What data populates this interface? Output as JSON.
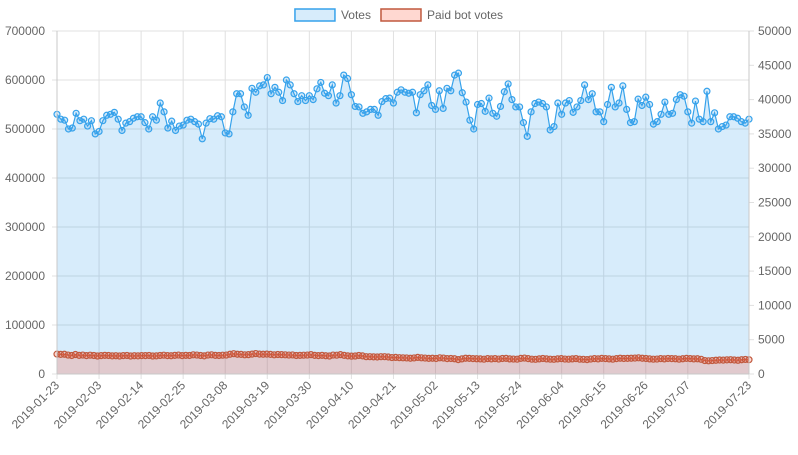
{
  "chart_data": {
    "type": "area",
    "dual_axis": true,
    "legend_position": "top",
    "grid": true,
    "legend": [
      {
        "name": "Votes",
        "color": "#36a2eb",
        "fill": "rgba(54,162,235,0.2)"
      },
      {
        "name": "Paid bot votes",
        "color": "#c0593e",
        "fill": "rgba(255,99,71,0.25)"
      }
    ],
    "x_start": "2019-01-23",
    "x_end": "2019-07-23",
    "x_ticks": [
      "2019-01-23",
      "2019-02-03",
      "2019-02-14",
      "2019-02-25",
      "2019-03-08",
      "2019-03-19",
      "2019-03-30",
      "2019-04-10",
      "2019-04-21",
      "2019-05-02",
      "2019-05-13",
      "2019-05-24",
      "2019-06-04",
      "2019-06-15",
      "2019-06-26",
      "2019-07-07",
      "2019-07-23"
    ],
    "y_left": {
      "min": 0,
      "max": 700000,
      "ticks": [
        "0",
        "100000",
        "200000",
        "300000",
        "400000",
        "500000",
        "600000",
        "700000"
      ]
    },
    "y_right": {
      "min": 0,
      "max": 50000,
      "ticks": [
        "0",
        "5000",
        "10000",
        "15000",
        "20000",
        "25000",
        "30000",
        "35000",
        "40000",
        "45000",
        "50000"
      ]
    },
    "series": [
      {
        "name": "Votes",
        "axis": "left",
        "values": [
          530000,
          520000,
          518000,
          500000,
          502000,
          532000,
          517000,
          520000,
          506000,
          517000,
          490000,
          495000,
          517000,
          528000,
          530000,
          534000,
          520000,
          497000,
          512000,
          515000,
          522000,
          525000,
          525000,
          513000,
          500000,
          525000,
          518000,
          553000,
          535000,
          502000,
          516000,
          497000,
          506000,
          508000,
          518000,
          520000,
          515000,
          510000,
          480000,
          512000,
          521000,
          520000,
          527000,
          525000,
          492000,
          490000,
          535000,
          572000,
          572000,
          545000,
          528000,
          583000,
          575000,
          588000,
          590000,
          605000,
          572000,
          585000,
          575000,
          558000,
          600000,
          590000,
          572000,
          556000,
          568000,
          558000,
          568000,
          560000,
          582000,
          595000,
          573000,
          568000,
          590000,
          553000,
          568000,
          610000,
          603000,
          570000,
          546000,
          545000,
          532000,
          535000,
          540000,
          540000,
          528000,
          556000,
          562000,
          563000,
          553000,
          575000,
          580000,
          575000,
          573000,
          575000,
          533000,
          570000,
          578000,
          590000,
          548000,
          540000,
          578000,
          542000,
          583000,
          578000,
          610000,
          614000,
          574000,
          555000,
          518000,
          500000,
          550000,
          552000,
          536000,
          563000,
          532000,
          526000,
          546000,
          576000,
          592000,
          560000,
          545000,
          545000,
          513000,
          485000,
          535000,
          552000,
          555000,
          552000,
          545000,
          498000,
          505000,
          553000,
          530000,
          553000,
          558000,
          534000,
          545000,
          558000,
          590000,
          560000,
          572000,
          535000,
          535000,
          515000,
          550000,
          585000,
          545000,
          553000,
          588000,
          540000,
          513000,
          515000,
          561000,
          548000,
          565000,
          550000,
          510000,
          515000,
          530000,
          555000,
          530000,
          532000,
          560000,
          570000,
          567000,
          535000,
          512000,
          557000,
          520000,
          515000,
          577000,
          515000,
          533000,
          500000,
          505000,
          508000,
          525000,
          525000,
          522000,
          515000,
          512000,
          520000
        ]
      },
      {
        "name": "Paid bot votes",
        "axis": "right",
        "values": [
          2900,
          2860,
          2880,
          2760,
          2700,
          2840,
          2720,
          2760,
          2680,
          2740,
          2700,
          2620,
          2680,
          2720,
          2700,
          2640,
          2660,
          2620,
          2680,
          2700,
          2620,
          2660,
          2640,
          2680,
          2680,
          2700,
          2620,
          2640,
          2700,
          2740,
          2680,
          2660,
          2720,
          2760,
          2680,
          2720,
          2700,
          2800,
          2760,
          2700,
          2640,
          2760,
          2800,
          2720,
          2700,
          2740,
          2760,
          2880,
          2960,
          2880,
          2860,
          2800,
          2820,
          2900,
          2980,
          2900,
          2880,
          2900,
          2860,
          2800,
          2840,
          2820,
          2800,
          2760,
          2780,
          2700,
          2720,
          2740,
          2760,
          2820,
          2720,
          2680,
          2720,
          2660,
          2620,
          2760,
          2740,
          2820,
          2720,
          2640,
          2600,
          2620,
          2700,
          2640,
          2520,
          2520,
          2500,
          2480,
          2520,
          2520,
          2480,
          2400,
          2420,
          2380,
          2360,
          2340,
          2300,
          2340,
          2420,
          2360,
          2320,
          2280,
          2300,
          2260,
          2360,
          2320,
          2240,
          2260,
          2220,
          2100,
          2200,
          2300,
          2280,
          2240,
          2220,
          2200,
          2160,
          2240,
          2200,
          2240,
          2180,
          2260,
          2280,
          2200,
          2180,
          2160,
          2280,
          2320,
          2240,
          2160,
          2140,
          2200,
          2260,
          2200,
          2160,
          2140,
          2200,
          2240,
          2180,
          2160,
          2200,
          2240,
          2160,
          2140,
          2100,
          2180,
          2240,
          2200,
          2280,
          2240,
          2200,
          2160,
          2240,
          2300,
          2260,
          2280,
          2300,
          2320,
          2360,
          2300,
          2260,
          2200,
          2160,
          2180,
          2240,
          2200,
          2260,
          2240,
          2220,
          2160,
          2220,
          2280,
          2240,
          2200,
          2220,
          2140,
          1960,
          1920,
          1960,
          2000,
          2040,
          2020,
          2060,
          2080,
          2040,
          2000,
          2080,
          2120,
          2080
        ]
      }
    ]
  }
}
